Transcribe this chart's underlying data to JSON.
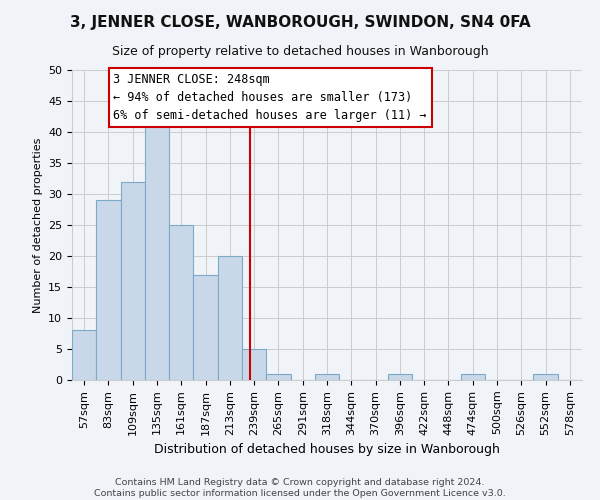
{
  "title": "3, JENNER CLOSE, WANBOROUGH, SWINDON, SN4 0FA",
  "subtitle": "Size of property relative to detached houses in Wanborough",
  "xlabel": "Distribution of detached houses by size in Wanborough",
  "ylabel": "Number of detached properties",
  "footer_lines": [
    "Contains HM Land Registry data © Crown copyright and database right 2024.",
    "Contains public sector information licensed under the Open Government Licence v3.0."
  ],
  "bin_labels": [
    "57sqm",
    "83sqm",
    "109sqm",
    "135sqm",
    "161sqm",
    "187sqm",
    "213sqm",
    "239sqm",
    "265sqm",
    "291sqm",
    "318sqm",
    "344sqm",
    "370sqm",
    "396sqm",
    "422sqm",
    "448sqm",
    "474sqm",
    "500sqm",
    "526sqm",
    "552sqm",
    "578sqm"
  ],
  "bar_values": [
    8,
    29,
    32,
    41,
    25,
    17,
    20,
    5,
    1,
    0,
    1,
    0,
    0,
    1,
    0,
    0,
    1,
    0,
    0,
    1,
    0
  ],
  "bar_color": "#c8d8e8",
  "bar_edge_color": "#7aaac8",
  "ylim": [
    0,
    50
  ],
  "yticks": [
    0,
    5,
    10,
    15,
    20,
    25,
    30,
    35,
    40,
    45,
    50
  ],
  "grid_color": "#cccccc",
  "property_line_color": "#cc0000",
  "annotation_title": "3 JENNER CLOSE: 248sqm",
  "annotation_line1": "← 94% of detached houses are smaller (173)",
  "annotation_line2": "6% of semi-detached houses are larger (11) →",
  "annotation_box_color": "#ffffff",
  "annotation_border_color": "#cc0000",
  "background_color": "#f0f4f8",
  "title_fontsize": 11,
  "subtitle_fontsize": 9,
  "xlabel_fontsize": 9,
  "ylabel_fontsize": 8,
  "tick_fontsize": 8,
  "annotation_fontsize": 8.5,
  "footer_fontsize": 6.8
}
